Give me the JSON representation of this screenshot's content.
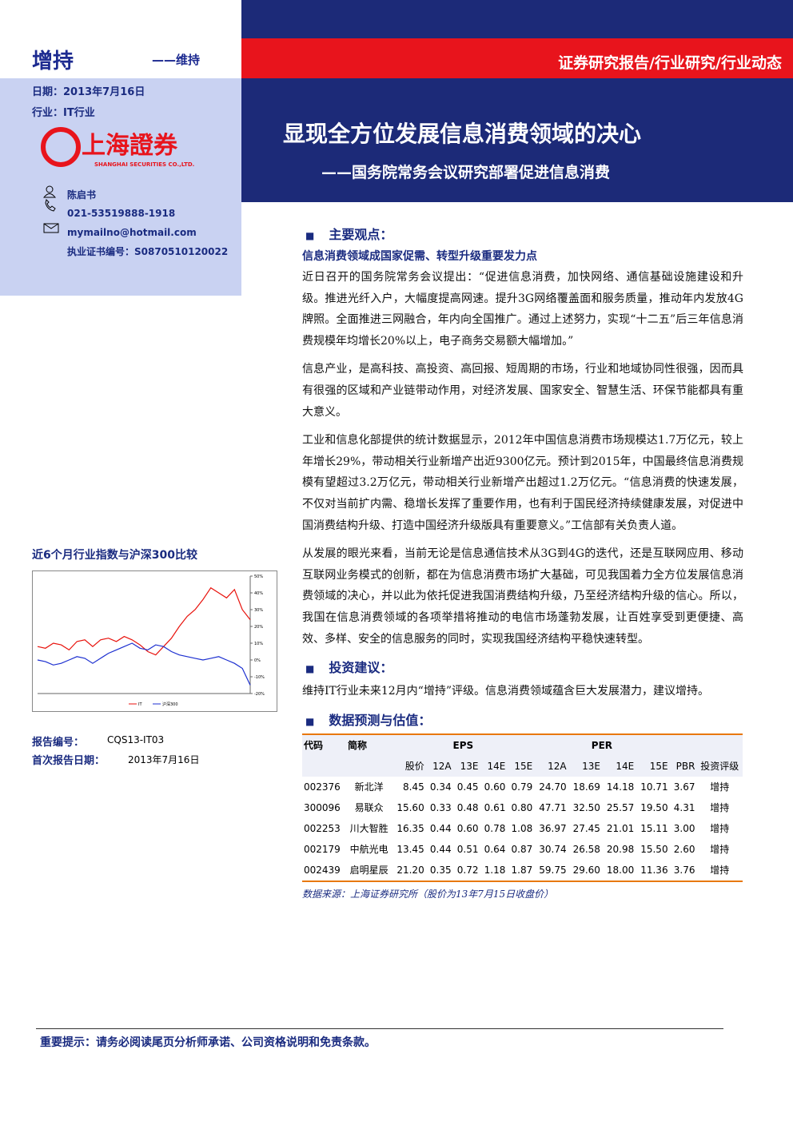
{
  "header": {
    "rating": "增持",
    "rating_change": "——维持",
    "report_type": "证券研究报告/行业研究/行业动态",
    "date": "日期：2013年7月16日",
    "industry": "行业：IT行业",
    "title": "显现全方位发展信息消费领域的决心",
    "subtitle": "——国务院常务会议研究部署促进信息消费"
  },
  "logo": {
    "name": "上海證券",
    "english": "SHANGHAI SECURITIES CO.,LTD."
  },
  "analyst": {
    "name": "陈启书",
    "phone": "021-53519888-1918",
    "email": "mymailno@hotmail.com",
    "license": "执业证书编号：S0870510120022"
  },
  "chart_data": {
    "type": "line",
    "title": "近6个月行业指数与沪深300比较",
    "series": [
      {
        "name": "IT",
        "color": "#e8120c",
        "values": [
          8,
          7,
          10,
          9,
          6,
          11,
          12,
          8,
          12,
          13,
          11,
          14,
          12,
          9,
          5,
          3,
          8,
          13,
          20,
          26,
          30,
          36,
          43,
          40,
          37,
          42,
          30,
          24
        ]
      },
      {
        "name": "沪深300",
        "color": "#1c2fd0",
        "values": [
          0,
          -1,
          -3,
          -2,
          0,
          2,
          1,
          -2,
          1,
          4,
          6,
          8,
          10,
          7,
          6,
          9,
          8,
          5,
          3,
          2,
          1,
          0,
          1,
          2,
          0,
          -2,
          -5,
          -15
        ]
      }
    ],
    "ylim": [
      -20,
      50
    ],
    "yticks": [
      {
        "value": -20,
        "label": "-20%"
      },
      {
        "value": -10,
        "label": "-10%"
      },
      {
        "value": 0,
        "label": "0%"
      },
      {
        "value": 10,
        "label": "10%"
      },
      {
        "value": 20,
        "label": "20%"
      },
      {
        "value": 30,
        "label": "30%"
      },
      {
        "value": 40,
        "label": "40%"
      },
      {
        "value": 50,
        "label": "50%"
      }
    ]
  },
  "report_info": {
    "number_label": "报告编号：",
    "number": "CQS13-IT03",
    "first_date_label": "首次报告日期：",
    "first_date": "2013年7月16日"
  },
  "sections": [
    {
      "heading": "主要观点：",
      "subheading": "信息消费领域成国家促需、转型升级重要发力点",
      "paragraphs": [
        "近日召开的国务院常务会议提出：“促进信息消费，加快网络、通信基础设施建设和升级。推进光纤入户，大幅度提高网速。提升3G网络覆盖面和服务质量，推动年内发放4G牌照。全面推进三网融合，年内向全国推广。通过上述努力，实现“十二五”后三年信息消费规模年均增长20%以上，电子商务交易额大幅增加。”",
        "信息产业，是高科技、高投资、高回报、短周期的市场，行业和地域协同性很强，因而具有很强的区域和产业链带动作用，对经济发展、国家安全、智慧生活、环保节能都具有重大意义。",
        "工业和信息化部提供的统计数据显示，2012年中国信息消费市场规模达1.7万亿元，较上年增长29%，带动相关行业新增产出近9300亿元。预计到2015年，中国最终信息消费规模有望超过3.2万亿元，带动相关行业新增产出超过1.2万亿元。“信息消费的快速发展，不仅对当前扩内需、稳增长发挥了重要作用，也有利于国民经济持续健康发展，对促进中国消费结构升级、打造中国经济升级版具有重要意义。”工信部有关负责人道。",
        "从发展的眼光来看，当前无论是信息通信技术从3G到4G的迭代，还是互联网应用、移动互联网业务模式的创新，都在为信息消费市场扩大基础，可见我国着力全方位发展信息消费领域的决心，并以此为依托促进我国消费结构升级，乃至经济结构升级的信心。所以，我国在信息消费领域的各项举措将推动的电信市场蓬勃发展，让百姓享受到更便捷、高效、多样、安全的信息服务的同时，实现我国经济结构平稳快速转型。"
      ]
    },
    {
      "heading": "投资建议：",
      "paragraphs": [
        "维持IT行业未来12月内“增持”评级。信息消费领域蕴含巨大发展潜力，建议增持。"
      ]
    },
    {
      "heading": "数据预测与估值："
    }
  ],
  "table": {
    "header": [
      "代码",
      "简称",
      "EPS",
      "PER"
    ],
    "subheader": [
      "股价",
      "12A",
      "13E",
      "14E",
      "15E",
      "12A",
      "13E",
      "14E",
      "15E",
      "PBR",
      "投资评级"
    ],
    "rows": [
      [
        "002376",
        "新北洋",
        "8.45",
        "0.34",
        "0.45",
        "0.60",
        "0.79",
        "24.70",
        "18.69",
        "14.18",
        "10.71",
        "3.67",
        "增持"
      ],
      [
        "300096",
        "易联众",
        "15.60",
        "0.33",
        "0.48",
        "0.61",
        "0.80",
        "47.71",
        "32.50",
        "25.57",
        "19.50",
        "4.31",
        "增持"
      ],
      [
        "002253",
        "川大智胜",
        "16.35",
        "0.44",
        "0.60",
        "0.78",
        "1.08",
        "36.97",
        "27.45",
        "21.01",
        "15.11",
        "3.00",
        "增持"
      ],
      [
        "002179",
        "中航光电",
        "13.45",
        "0.44",
        "0.51",
        "0.64",
        "0.87",
        "30.74",
        "26.58",
        "20.98",
        "15.50",
        "2.60",
        "增持"
      ],
      [
        "002439",
        "启明星辰",
        "21.20",
        "0.35",
        "0.72",
        "1.18",
        "1.87",
        "59.75",
        "29.60",
        "18.00",
        "11.36",
        "3.76",
        "增持"
      ]
    ],
    "source": "数据来源：上海证券研究所（股价为13年7月15日收盘价）"
  },
  "footer": {
    "notice": "重要提示：请务必阅读尾页分析师承诺、公司资格说明和免责条款。"
  }
}
